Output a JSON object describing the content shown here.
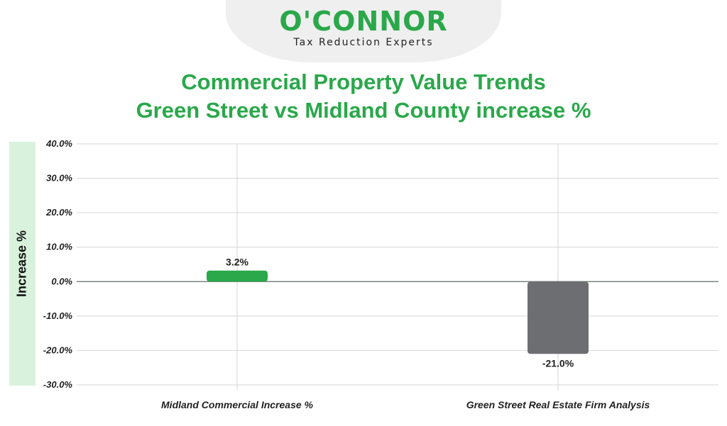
{
  "brand": {
    "name": "O'CONNOR",
    "tagline": "Tax Reduction Experts"
  },
  "chart_data": {
    "type": "bar",
    "title": "Commercial Property Value Trends",
    "subtitle": "Green Street vs Midland County increase %",
    "xlabel": "",
    "ylabel": "Increase %",
    "categories": [
      "Midland Commercial Increase %",
      "Green Street Real Estate Firm Analysis"
    ],
    "values": [
      3.2,
      -21.0
    ],
    "value_labels": [
      "3.2%",
      "-21.0%"
    ],
    "colors": [
      "#2aa84a",
      "#6d6e71"
    ],
    "ylim": [
      -30,
      40
    ],
    "yticks": [
      40,
      30,
      20,
      10,
      0,
      -10,
      -20,
      -30
    ],
    "ytick_labels": [
      "40.0%",
      "30.0%",
      "20.0%",
      "10.0%",
      "0.0%",
      "-10.0%",
      "-20.0%",
      "-30.0%"
    ],
    "grid": true
  }
}
